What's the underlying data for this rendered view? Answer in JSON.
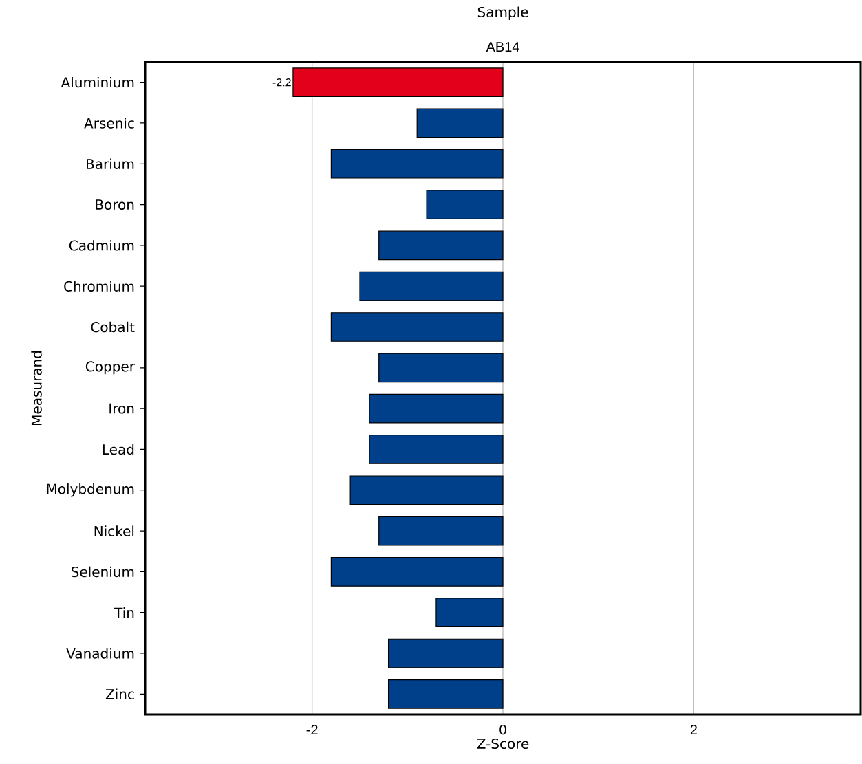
{
  "chart_data": {
    "type": "bar",
    "orientation": "horizontal",
    "title": "Sample",
    "subtitle": "AB14",
    "xlabel": "Z-Score",
    "ylabel": "Measurand",
    "categories": [
      "Aluminium",
      "Arsenic",
      "Barium",
      "Boron",
      "Cadmium",
      "Chromium",
      "Cobalt",
      "Copper",
      "Iron",
      "Lead",
      "Molybdenum",
      "Nickel",
      "Selenium",
      "Tin",
      "Vanadium",
      "Zinc"
    ],
    "values": [
      -2.2,
      -0.9,
      -1.8,
      -0.8,
      -1.3,
      -1.5,
      -1.8,
      -1.3,
      -1.4,
      -1.4,
      -1.6,
      -1.3,
      -1.8,
      -0.7,
      -1.2,
      -1.2
    ],
    "colors": [
      "#e2001a",
      "#003f8a",
      "#003f8a",
      "#003f8a",
      "#003f8a",
      "#003f8a",
      "#003f8a",
      "#003f8a",
      "#003f8a",
      "#003f8a",
      "#003f8a",
      "#003f8a",
      "#003f8a",
      "#003f8a",
      "#003f8a",
      "#003f8a"
    ],
    "value_labels": [
      "-2.2",
      null,
      null,
      null,
      null,
      null,
      null,
      null,
      null,
      null,
      null,
      null,
      null,
      null,
      null,
      null
    ],
    "xlim": [
      -3.75,
      3.75
    ],
    "xticks": [
      -2,
      0,
      2
    ],
    "grid": "x"
  }
}
